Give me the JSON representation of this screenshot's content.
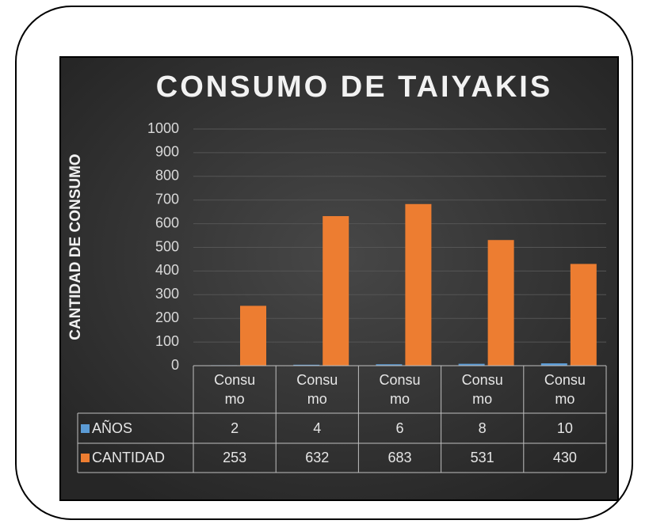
{
  "chart_data": {
    "type": "bar",
    "title": "CONSUMO DE TAIYAKIS",
    "y_label": "CANTIDAD DE CONSUMO",
    "categories": [
      "Consumo",
      "Consumo",
      "Consumo",
      "Consumo",
      "Consumo"
    ],
    "series": [
      {
        "name": "AÑOS",
        "color": "#5b9bd5",
        "values": [
          2,
          4,
          6,
          8,
          10
        ]
      },
      {
        "name": "CANTIDAD",
        "color": "#ed7d31",
        "values": [
          253,
          632,
          683,
          531,
          430
        ]
      }
    ],
    "ylim": [
      0,
      1000
    ],
    "yticks": [
      0,
      100,
      200,
      300,
      400,
      500,
      600,
      700,
      800,
      900,
      1000
    ],
    "grid": true,
    "data_table": true
  }
}
